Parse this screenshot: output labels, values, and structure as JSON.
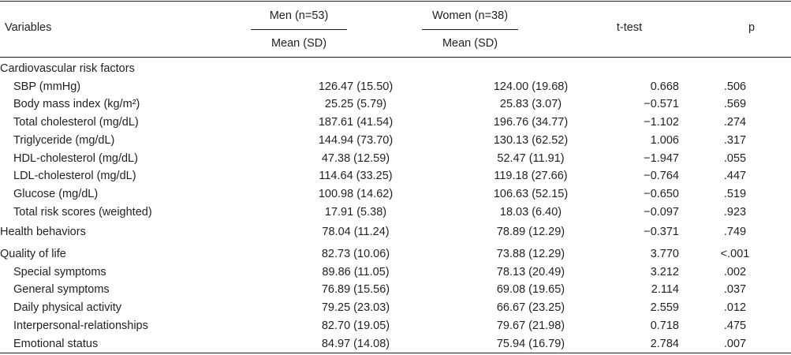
{
  "header": {
    "variables": "Variables",
    "men_group": "Men (n=53)",
    "women_group": "Women (n=38)",
    "men_stat": "Mean (SD)",
    "women_stat": "Mean (SD)",
    "ttest": "t-test",
    "p": "p"
  },
  "rows": [
    {
      "label": "Cardiovascular risk factors",
      "indent": false,
      "men": "",
      "women": "",
      "t": "",
      "p": ""
    },
    {
      "label": "SBP (mmHg)",
      "indent": true,
      "men": "126.47 (15.50)",
      "women": "124.00 (19.68)",
      "t": "0.668",
      "p": ".506"
    },
    {
      "label": "Body mass index (kg/m²)",
      "indent": true,
      "men": "25.25 (5.79)",
      "women": "25.83 (3.07)",
      "t": "−0.571",
      "p": ".569"
    },
    {
      "label": "Total cholesterol (mg/dL)",
      "indent": true,
      "men": "187.61 (41.54)",
      "women": "196.76 (34.77)",
      "t": "−1.102",
      "p": ".274"
    },
    {
      "label": "Triglyceride (mg/dL)",
      "indent": true,
      "men": "144.94 (73.70)",
      "women": "130.13 (62.52)",
      "t": "1.006",
      "p": ".317"
    },
    {
      "label": "HDL-cholesterol (mg/dL)",
      "indent": true,
      "men": "47.38 (12.59)",
      "women": "52.47 (11.91)",
      "t": "−1.947",
      "p": ".055"
    },
    {
      "label": "LDL-cholesterol (mg/dL)",
      "indent": true,
      "men": "114.64 (33.25)",
      "women": "119.18 (27.66)",
      "t": "−0.764",
      "p": ".447"
    },
    {
      "label": "Glucose (mg/dL)",
      "indent": true,
      "men": "100.98 (14.62)",
      "women": "106.63 (52.15)",
      "t": "−0.650",
      "p": ".519"
    },
    {
      "label": "Total risk scores (weighted)",
      "indent": true,
      "men": "17.91 (5.38)",
      "women": "18.03 (6.40)",
      "t": "−0.097",
      "p": ".923"
    },
    {
      "label": "Health behaviors",
      "indent": false,
      "men": "78.04 (11.24)",
      "women": "78.89 (12.29)",
      "t": "−0.371",
      "p": ".749"
    },
    {
      "label": "Quality of life",
      "indent": false,
      "men": "82.73 (10.06)",
      "women": "73.88 (12.29)",
      "t": "3.770",
      "p": "<.001"
    },
    {
      "label": "Special symptoms",
      "indent": true,
      "men": "89.86 (11.05)",
      "women": "78.13 (20.49)",
      "t": "3.212",
      "p": ".002"
    },
    {
      "label": "General symptoms",
      "indent": true,
      "men": "76.89 (15.56)",
      "women": "69.08 (19.65)",
      "t": "2.114",
      "p": ".037"
    },
    {
      "label": "Daily physical activity",
      "indent": true,
      "men": "79.25 (23.03)",
      "women": "66.67 (23.25)",
      "t": "2.559",
      "p": ".012"
    },
    {
      "label": "Interpersonal-relationships",
      "indent": true,
      "men": "82.70 (19.05)",
      "women": "79.67 (21.98)",
      "t": "0.718",
      "p": ".475"
    },
    {
      "label": "Emotional status",
      "indent": true,
      "men": "84.97 (14.08)",
      "women": "75.94 (16.79)",
      "t": "2.784",
      "p": ".007"
    }
  ],
  "chart_data": {
    "type": "table",
    "columns": [
      "Variables",
      "Men (n=53) Mean (SD)",
      "Women (n=38) Mean (SD)",
      "t-test",
      "p"
    ],
    "rows": [
      [
        "Cardiovascular risk factors",
        "",
        "",
        "",
        ""
      ],
      [
        "SBP (mmHg)",
        "126.47 (15.50)",
        "124.00 (19.68)",
        "0.668",
        ".506"
      ],
      [
        "Body mass index (kg/m²)",
        "25.25 (5.79)",
        "25.83 (3.07)",
        "−0.571",
        ".569"
      ],
      [
        "Total cholesterol (mg/dL)",
        "187.61 (41.54)",
        "196.76 (34.77)",
        "−1.102",
        ".274"
      ],
      [
        "Triglyceride (mg/dL)",
        "144.94 (73.70)",
        "130.13 (62.52)",
        "1.006",
        ".317"
      ],
      [
        "HDL-cholesterol (mg/dL)",
        "47.38 (12.59)",
        "52.47 (11.91)",
        "−1.947",
        ".055"
      ],
      [
        "LDL-cholesterol (mg/dL)",
        "114.64 (33.25)",
        "119.18 (27.66)",
        "−0.764",
        ".447"
      ],
      [
        "Glucose (mg/dL)",
        "100.98 (14.62)",
        "106.63 (52.15)",
        "−0.650",
        ".519"
      ],
      [
        "Total risk scores (weighted)",
        "17.91 (5.38)",
        "18.03 (6.40)",
        "−0.097",
        ".923"
      ],
      [
        "Health behaviors",
        "78.04 (11.24)",
        "78.89 (12.29)",
        "−0.371",
        ".749"
      ],
      [
        "Quality of life",
        "82.73 (10.06)",
        "73.88 (12.29)",
        "3.770",
        "<.001"
      ],
      [
        "Special symptoms",
        "89.86 (11.05)",
        "78.13 (20.49)",
        "3.212",
        ".002"
      ],
      [
        "General symptoms",
        "76.89 (15.56)",
        "69.08 (19.65)",
        "2.114",
        ".037"
      ],
      [
        "Daily physical activity",
        "79.25 (23.03)",
        "66.67 (23.25)",
        "2.559",
        ".012"
      ],
      [
        "Interpersonal-relationships",
        "82.70 (19.05)",
        "79.67 (21.98)",
        "0.718",
        ".475"
      ],
      [
        "Emotional status",
        "84.97 (14.08)",
        "75.94 (16.79)",
        "2.784",
        ".007"
      ]
    ]
  }
}
